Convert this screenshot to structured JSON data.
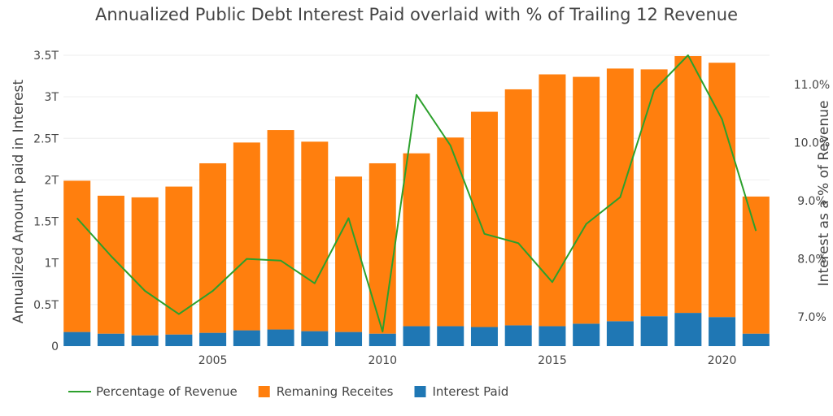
{
  "chart_data": {
    "type": "bar",
    "title": "Annualized Public Debt Interest Paid overlaid with % of Trailing 12 Revenue",
    "ylabel": "Annualized Amount paid in Interest",
    "y2label": "Interest as a % of Revenue",
    "barmode": "stack",
    "x": [
      2001,
      2002,
      2003,
      2004,
      2005,
      2006,
      2007,
      2008,
      2009,
      2010,
      2011,
      2012,
      2013,
      2014,
      2015,
      2016,
      2017,
      2018,
      2019,
      2020,
      2021
    ],
    "ylim": [
      0,
      3.5
    ],
    "y2lim": [
      6.5,
      11.5
    ],
    "x_ticks": [
      2005,
      2010,
      2015,
      2020
    ],
    "y_ticks": [
      0,
      0.5,
      1,
      1.5,
      2,
      2.5,
      3,
      3.5
    ],
    "y_tick_labels": [
      "0",
      "0.5T",
      "1T",
      "1.5T",
      "2T",
      "2.5T",
      "3T",
      "3.5T"
    ],
    "y2_ticks": [
      7,
      8,
      9,
      10,
      11
    ],
    "y2_tick_labels": [
      "7.0%",
      "8.0%",
      "9.0%",
      "10.0%",
      "11.0%"
    ],
    "series": [
      {
        "name": "Interest Paid",
        "type": "bar",
        "axis": "left",
        "color": "#1f77b4",
        "values": [
          0.17,
          0.15,
          0.13,
          0.14,
          0.16,
          0.19,
          0.2,
          0.18,
          0.17,
          0.15,
          0.24,
          0.24,
          0.23,
          0.25,
          0.24,
          0.27,
          0.3,
          0.36,
          0.4,
          0.35,
          0.15
        ]
      },
      {
        "name": "Remaning Receites",
        "type": "bar",
        "axis": "left",
        "color": "#ff7f0e",
        "values": [
          1.82,
          1.66,
          1.66,
          1.78,
          2.04,
          2.26,
          2.4,
          2.28,
          1.87,
          2.05,
          2.08,
          2.27,
          2.59,
          2.84,
          3.03,
          2.97,
          3.04,
          2.97,
          3.09,
          3.06,
          1.65
        ]
      },
      {
        "name": "Percentage of Revenue",
        "type": "line",
        "axis": "right",
        "color": "#2ca02c",
        "values": [
          8.7,
          8.05,
          7.45,
          7.05,
          7.45,
          8.0,
          7.97,
          7.58,
          8.7,
          6.75,
          10.82,
          9.95,
          8.43,
          8.27,
          7.6,
          8.6,
          9.06,
          10.9,
          11.5,
          10.4,
          8.48
        ]
      }
    ],
    "legend": {
      "position": "bottom",
      "items": [
        {
          "label": "Percentage of Revenue",
          "symbol": "line",
          "color": "#2ca02c"
        },
        {
          "label": "Remaning Receites",
          "symbol": "square",
          "color": "#ff7f0e"
        },
        {
          "label": "Interest Paid",
          "symbol": "square",
          "color": "#1f77b4"
        }
      ]
    },
    "grid": true
  }
}
